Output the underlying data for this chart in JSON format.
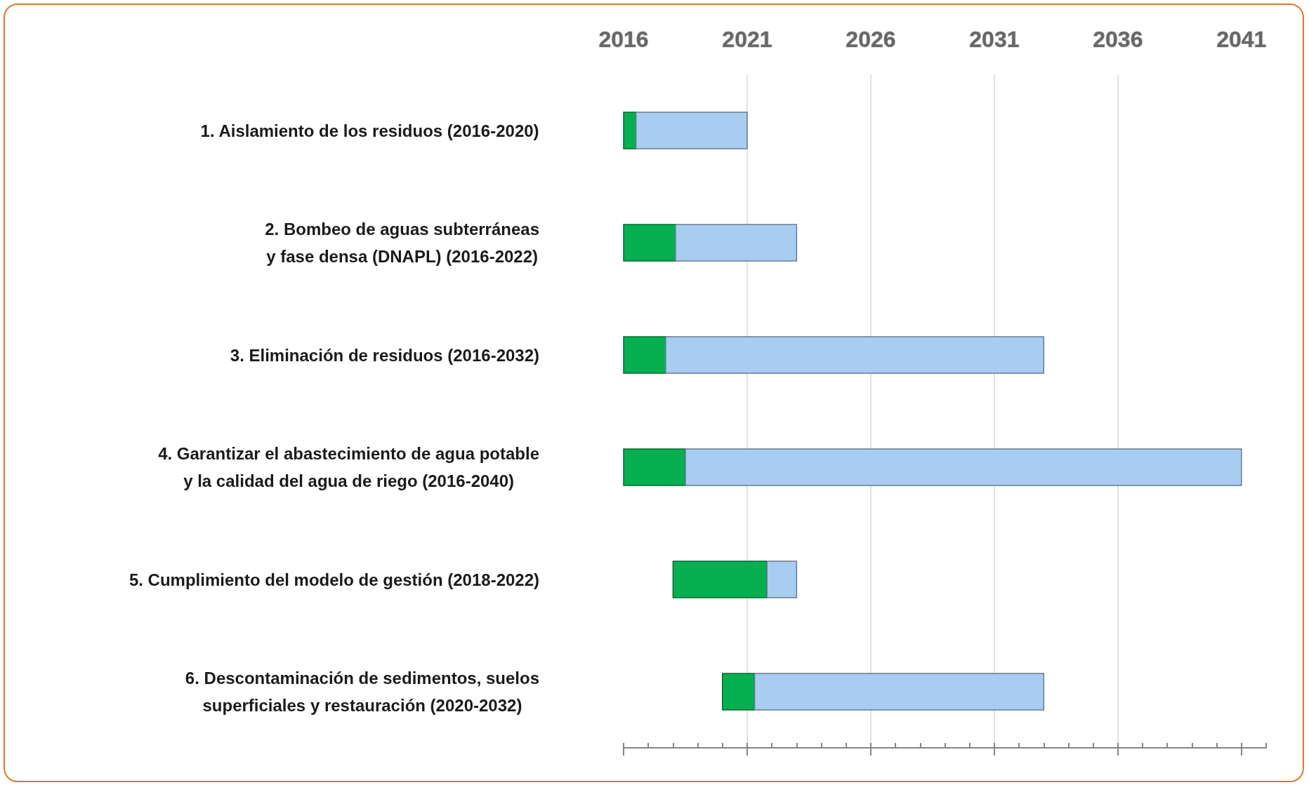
{
  "chart_data": {
    "type": "bar",
    "orientation": "horizontal",
    "categories": [
      "1. Aislamiento de los residuos (2016-2020)",
      "2. Bombeo de aguas subterráneas\ny fase densa (DNAPL) (2016-2022)",
      "3. Eliminación de residuos (2016-2032)",
      "4. Garantizar el abastecimiento de agua potable\ny la calidad del agua de riego (2016-2040)",
      "5. Cumplimiento del modelo de gestión (2018-2022)",
      "6. Descontaminación de sedimentos, suelos\nsuperficiales y restauración (2020-2032)"
    ],
    "series": [
      {
        "color": "#06b050",
        "base": [
          2016,
          2016,
          2016,
          2016,
          2018,
          2020
        ],
        "values": [
          0.5,
          2.1,
          1.7,
          2.5,
          3.8,
          1.3
        ]
      },
      {
        "color": "#a9cdf1",
        "base": [
          2016.5,
          2018.1,
          2017.7,
          2018.5,
          2021.8,
          2021.3
        ],
        "values": [
          4.5,
          4.9,
          15.3,
          22.5,
          1.2,
          11.7
        ]
      }
    ],
    "xlim": [
      2016,
      2042
    ],
    "xticks": [
      2016,
      {
        "value": 2017,
        "label": null
      },
      {
        "value": 2018,
        "label": null
      },
      {
        "value": 2019,
        "label": null
      },
      {
        "value": 2020,
        "label": null
      },
      2021,
      {
        "value": 2022,
        "label": null
      },
      {
        "value": 2023,
        "label": null
      },
      {
        "value": 2024,
        "label": null
      },
      {
        "value": 2025,
        "label": null
      },
      2026,
      {
        "value": 2027,
        "label": null
      },
      {
        "value": 2028,
        "label": null
      },
      {
        "value": 2029,
        "label": null
      },
      {
        "value": 2030,
        "label": null
      },
      2031,
      {
        "value": 2032,
        "label": null
      },
      {
        "value": 2033,
        "label": null
      },
      {
        "value": 2034,
        "label": null
      },
      {
        "value": 2035,
        "label": null
      },
      2036,
      {
        "value": 2037,
        "label": null
      },
      {
        "value": 2038,
        "label": null
      },
      {
        "value": 2039,
        "label": null
      },
      {
        "value": 2040,
        "label": null
      },
      2041,
      {
        "value": 2042,
        "label": null
      }
    ],
    "grid": "x"
  }
}
